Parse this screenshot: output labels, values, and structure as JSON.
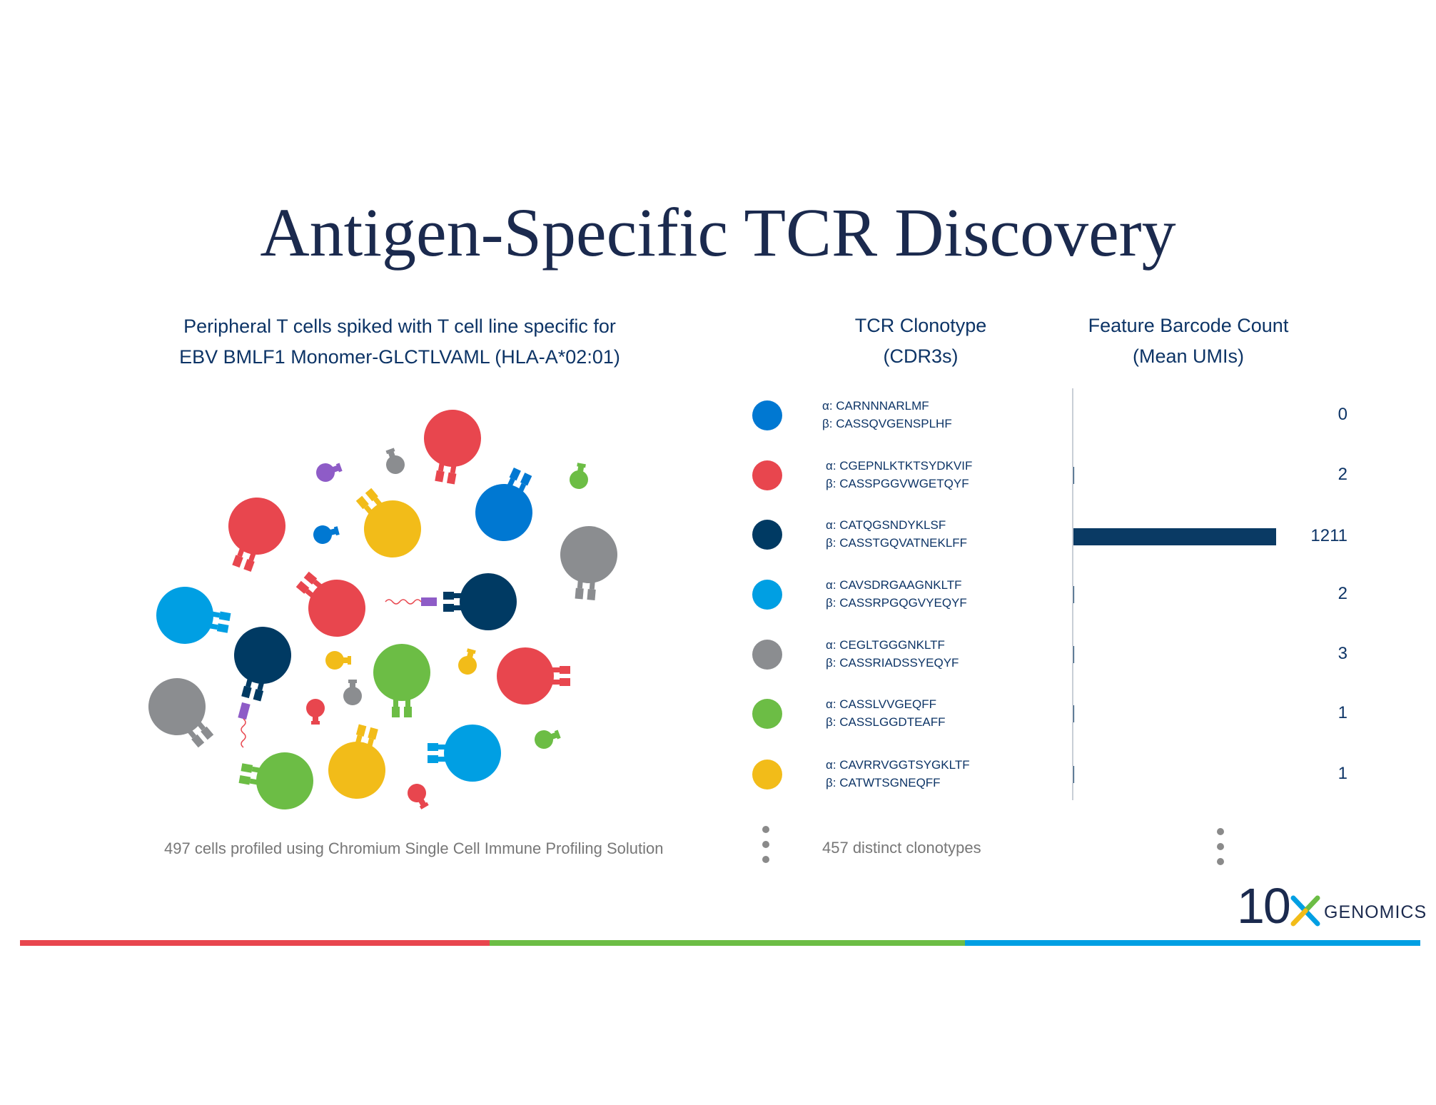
{
  "title": "Antigen-Specific TCR Discovery",
  "left_caption": {
    "line1": "Peripheral T cells spiked with T cell line specific for",
    "line2": "EBV BMLF1 Monomer-GLCTLVAML (HLA-A*02:01)"
  },
  "column_headers": {
    "clonotype_line1": "TCR Clonotype",
    "clonotype_line2": "(CDR3s)",
    "count_line1": "Feature Barcode Count",
    "count_line2": "(Mean UMIs)"
  },
  "colors": {
    "red": "#e8464e",
    "green": "#6cbd45",
    "light_blue": "#009fe3",
    "mid_blue": "#0078d2",
    "navy": "#003a63",
    "gray": "#8b8d90",
    "yellow": "#f2bc19",
    "purple": "#8e5cc7",
    "title_navy": "#1b2a4e",
    "text_navy": "#0d3466"
  },
  "clonotypes": [
    {
      "color": "#0078d2",
      "alpha": "α: CARNNNARLMF",
      "beta": "β: CASSQVGENSPLHF",
      "count": "0",
      "value": 0
    },
    {
      "color": "#e8464e",
      "alpha": "α: CGEPNLKTKTSYDKVIF",
      "beta": "β: CASSPGGVWGETQYF",
      "count": "2",
      "value": 2
    },
    {
      "color": "#003a63",
      "alpha": "α: CATQGSNDYKLSF",
      "beta": "β: CASSTGQVATNEKLFF",
      "count": "1211",
      "value": 1211
    },
    {
      "color": "#009fe3",
      "alpha": "α: CAVSDRGAAGNKLTF",
      "beta": "β: CASSRPGQGVYEQYF",
      "count": "2",
      "value": 2
    },
    {
      "color": "#8b8d90",
      "alpha": "α: CEGLTGGGNKLTF",
      "beta": "β: CASSRIADSSYEQYF",
      "count": "3",
      "value": 3
    },
    {
      "color": "#6cbd45",
      "alpha": "α: CASSLVVGEQFF",
      "beta": "β: CASSLGGDTEAFF",
      "count": "1",
      "value": 1
    },
    {
      "color": "#f2bc19",
      "alpha": "α: CAVRRVGGTSYGKLTF",
      "beta": "β: CATWTSGNEQFF",
      "count": "1",
      "value": 1
    }
  ],
  "footer": {
    "cells_text": "497 cells profiled using Chromium Single Cell Immune Profiling Solution",
    "clonotypes_text": "457 distinct clonotypes"
  },
  "logo": {
    "number": "10",
    "wordmark": "GENOMICS"
  },
  "bottom_stripe_colors": [
    "#e8464e",
    "#6cbd45",
    "#009fe3"
  ]
}
